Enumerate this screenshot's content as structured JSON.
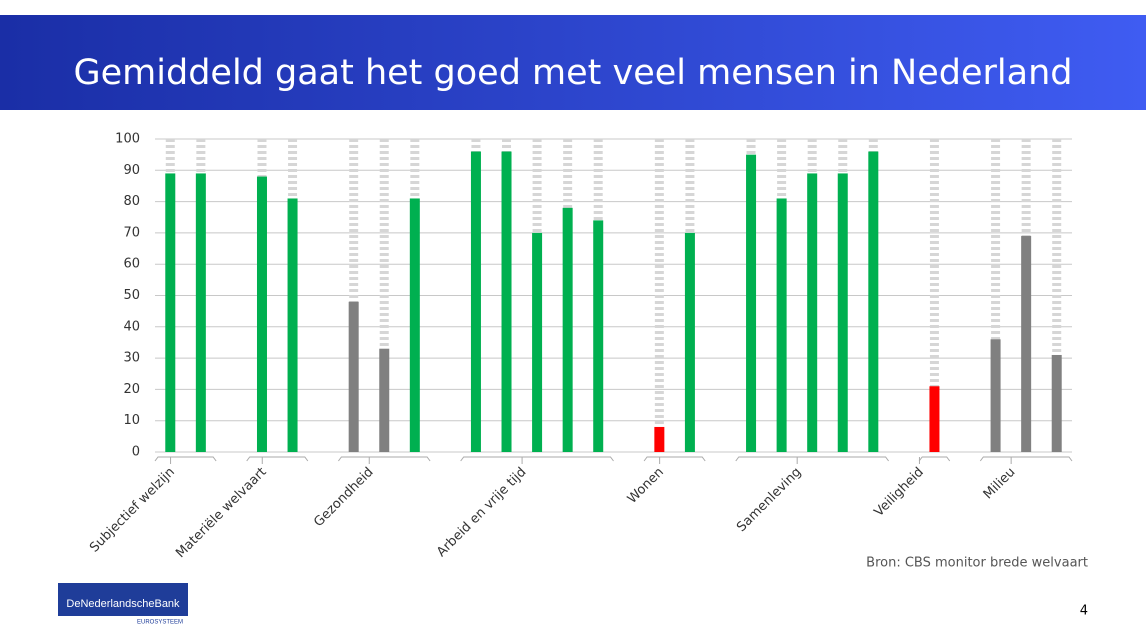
{
  "header": {
    "title": "Gemiddeld gaat het goed met veel mensen in Nederland"
  },
  "chart_data": {
    "type": "bar",
    "groups": [
      {
        "label": "Subjectief welzijn",
        "values": [
          89,
          89
        ],
        "colors": [
          "#00b050",
          "#00b050"
        ]
      },
      {
        "label": "Materiële welvaart",
        "values": [
          88,
          81
        ],
        "colors": [
          "#00b050",
          "#00b050"
        ]
      },
      {
        "label": "Gezondheid",
        "values": [
          48,
          33,
          81
        ],
        "colors": [
          "#808080",
          "#808080",
          "#00b050"
        ]
      },
      {
        "label": "Arbeid en vrije tijd",
        "values": [
          96,
          96,
          70,
          78,
          74
        ],
        "colors": [
          "#00b050",
          "#00b050",
          "#00b050",
          "#00b050",
          "#00b050"
        ]
      },
      {
        "label": "Wonen",
        "values": [
          8,
          70
        ],
        "colors": [
          "#ff0000",
          "#00b050"
        ]
      },
      {
        "label": "Samenleving",
        "values": [
          95,
          81,
          89,
          89,
          96
        ],
        "colors": [
          "#00b050",
          "#00b050",
          "#00b050",
          "#00b050",
          "#00b050"
        ]
      },
      {
        "label": "Veiligheid",
        "values": [
          21
        ],
        "colors": [
          "#ff0000"
        ]
      },
      {
        "label": "Milieu",
        "values": [
          36,
          69,
          31
        ],
        "colors": [
          "#808080",
          "#808080",
          "#808080"
        ]
      }
    ],
    "ylim": [
      0,
      100
    ],
    "yticks": [
      0,
      10,
      20,
      30,
      40,
      50,
      60,
      70,
      80,
      90,
      100
    ],
    "grid": true
  },
  "source": "Bron: CBS monitor brede welvaart",
  "page_number": "4",
  "logo": {
    "name": "DeNederlandscheBank",
    "sub": "EUROSYSTEEM"
  }
}
